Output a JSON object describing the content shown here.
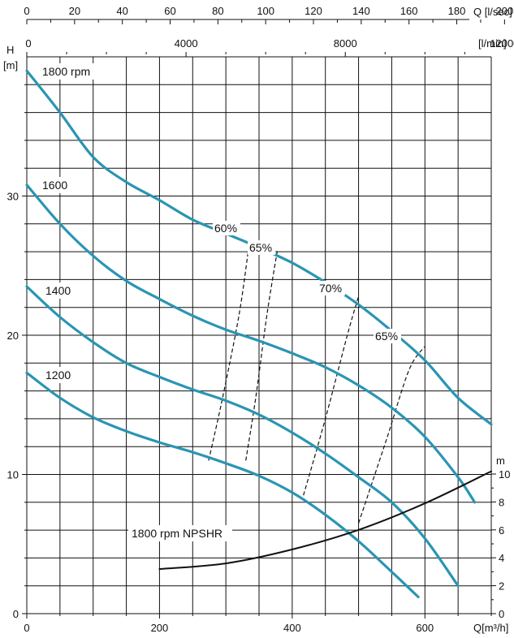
{
  "chart_data": {
    "type": "line",
    "colors": {
      "pump_curve": "#2a95b3",
      "npshr": "#111111",
      "efficiency": "#111111",
      "grid": "#111111"
    },
    "axes": {
      "q_m3h": {
        "label": "Q[m³/h]",
        "range": [
          0,
          700
        ],
        "ticks": [
          0,
          200,
          400,
          600
        ]
      },
      "head": {
        "label_h": "H",
        "label_m": "[m]",
        "range": [
          0,
          40
        ],
        "ticks": [
          0,
          10,
          20,
          30
        ]
      },
      "npshr_m": {
        "label": "m",
        "range": [
          0,
          10
        ],
        "ticks": [
          0,
          2,
          4,
          6,
          8,
          10
        ]
      },
      "q_lsec": {
        "label": "Q [l/sec]",
        "range": [
          0,
          194.44
        ],
        "ticks": [
          0,
          20,
          40,
          60,
          80,
          100,
          120,
          140,
          160,
          180,
          200
        ]
      },
      "q_lmin": {
        "label": "[l/min]",
        "range": [
          0,
          11666.7
        ],
        "ticks": [
          0,
          4000,
          8000,
          12000
        ]
      }
    },
    "grid": true,
    "head_curves": [
      {
        "name": "1800 rpm",
        "x": [
          0,
          50,
          100,
          150,
          200,
          250,
          300,
          350,
          400,
          450,
          500,
          550,
          600,
          650,
          700
        ],
        "y": [
          39,
          36,
          32.8,
          31,
          29.7,
          28.3,
          27.3,
          26.3,
          25.2,
          23.8,
          22.2,
          20.3,
          18.2,
          15.5,
          13.6
        ]
      },
      {
        "name": "1600",
        "x": [
          0,
          50,
          100,
          150,
          200,
          250,
          300,
          350,
          400,
          450,
          500,
          550,
          600,
          650,
          675
        ],
        "y": [
          30.8,
          28,
          25.7,
          23.9,
          22.6,
          21.4,
          20.4,
          19.6,
          18.7,
          17.7,
          16.4,
          14.8,
          12.7,
          9.8,
          8
        ]
      },
      {
        "name": "1400",
        "x": [
          0,
          50,
          100,
          150,
          200,
          250,
          300,
          350,
          400,
          450,
          500,
          550,
          600,
          650
        ],
        "y": [
          23.5,
          21.3,
          19.5,
          18,
          17,
          16.1,
          15.3,
          14.3,
          13,
          11.5,
          9.8,
          8,
          5.4,
          2
        ]
      },
      {
        "name": "1200",
        "x": [
          0,
          50,
          100,
          150,
          200,
          250,
          300,
          350,
          400,
          450,
          500,
          550,
          590
        ],
        "y": [
          17.3,
          15.5,
          14.1,
          13.1,
          12.3,
          11.6,
          10.8,
          9.9,
          8.7,
          7.1,
          5.2,
          3,
          1.2
        ]
      }
    ],
    "npshr_curve": {
      "name": "1800 rpm NPSHR",
      "x": [
        200,
        300,
        400,
        500,
        600,
        700
      ],
      "y": [
        3.2,
        3.6,
        4.6,
        6,
        7.9,
        10.2
      ]
    },
    "efficiency_lines": [
      {
        "name": "60%",
        "x": [
          274,
          295,
          320,
          335
        ],
        "y": [
          11,
          15.5,
          21.5,
          26.5
        ]
      },
      {
        "name": "65%",
        "x": [
          330,
          345,
          362,
          378
        ],
        "y": [
          11,
          15.5,
          21.5,
          26.2
        ]
      },
      {
        "name": "70%",
        "x": [
          417,
          450,
          483,
          500
        ],
        "y": [
          8.5,
          14,
          20,
          22.8
        ]
      },
      {
        "name": "65%",
        "x": [
          500,
          542,
          576,
          600
        ],
        "y": [
          6.5,
          12.5,
          17.5,
          19.2
        ]
      }
    ],
    "efficiency_labels": [
      "60%",
      "65%",
      "70%",
      "65%"
    ]
  }
}
